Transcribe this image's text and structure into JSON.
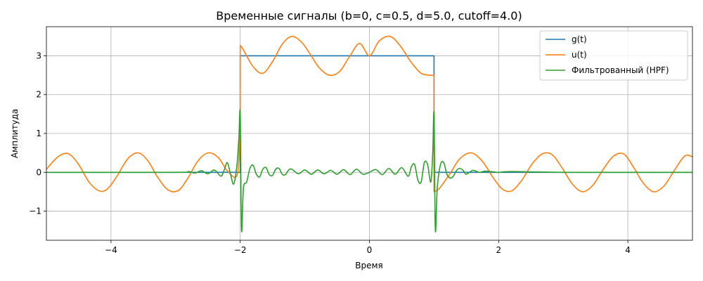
{
  "chart_data": {
    "type": "line",
    "title": "Временные сигналы (b=0, c=0.5, d=5.0, cutoff=4.0)",
    "xlabel": "Время",
    "ylabel": "Амплитуда",
    "xlim": [
      -5,
      5
    ],
    "ylim": [
      -1.75,
      3.75
    ],
    "xticks": [
      -4,
      -2,
      0,
      2,
      4
    ],
    "xtick_labels": [
      "−4",
      "−2",
      "0",
      "2",
      "4"
    ],
    "yticks": [
      -1,
      0,
      1,
      2,
      3
    ],
    "ytick_labels": [
      "−1",
      "0",
      "1",
      "2",
      "3"
    ],
    "grid": true,
    "legend_position": "top-right",
    "series": [
      {
        "name": "g(t)",
        "color": "#1f77b4",
        "x": [
          -5,
          -2,
          -2,
          1,
          1,
          5
        ],
        "y": [
          0,
          0,
          3,
          3,
          0,
          0
        ]
      },
      {
        "name": "u(t)",
        "color": "#ff7f0e",
        "x": [
          -5,
          -4.82,
          -4.66,
          -4.5,
          -4.34,
          -4.18,
          -4.05,
          -3.9,
          -3.74,
          -3.58,
          -3.43,
          -3.28,
          -3.12,
          -2.96,
          -2.81,
          -2.66,
          -2.5,
          -2.34,
          -2.19,
          -2.04,
          -2.0,
          -2.0,
          -1.95,
          -1.8,
          -1.65,
          -1.5,
          -1.35,
          -1.2,
          -1.05,
          -0.92,
          -0.78,
          -0.62,
          -0.46,
          -0.3,
          -0.15,
          0.0,
          0.15,
          0.32,
          0.48,
          0.64,
          0.8,
          0.95,
          1.0,
          1.0,
          1.08,
          1.24,
          1.4,
          1.58,
          1.75,
          1.9,
          2.05,
          2.2,
          2.36,
          2.52,
          2.68,
          2.83,
          2.98,
          3.14,
          3.3,
          3.46,
          3.62,
          3.78,
          3.94,
          4.08,
          4.24,
          4.4,
          4.56,
          4.72,
          4.88,
          5.0
        ],
        "y": [
          0.08,
          0.4,
          0.48,
          0.2,
          -0.25,
          -0.48,
          -0.42,
          -0.08,
          0.35,
          0.5,
          0.3,
          -0.12,
          -0.45,
          -0.47,
          -0.15,
          0.28,
          0.5,
          0.38,
          0.02,
          -0.02,
          1.5,
          3.27,
          3.15,
          2.72,
          2.55,
          2.85,
          3.3,
          3.5,
          3.35,
          3.05,
          2.7,
          2.5,
          2.6,
          3.0,
          3.32,
          3.0,
          3.38,
          3.5,
          3.25,
          2.85,
          2.55,
          2.5,
          2.5,
          -0.5,
          -0.42,
          -0.05,
          0.35,
          0.5,
          0.28,
          -0.1,
          -0.42,
          -0.48,
          -0.2,
          0.22,
          0.48,
          0.45,
          0.12,
          -0.3,
          -0.5,
          -0.33,
          0.08,
          0.42,
          0.47,
          0.15,
          -0.28,
          -0.5,
          -0.35,
          0.05,
          0.42,
          0.4
        ]
      },
      {
        "name": "Фильтрованный (HPF)",
        "color": "#2ca02c",
        "x": [
          -5,
          -3.0,
          -2.8,
          -2.7,
          -2.6,
          -2.5,
          -2.4,
          -2.3,
          -2.25,
          -2.2,
          -2.15,
          -2.1,
          -2.05,
          -2.02,
          -2.0,
          -1.98,
          -1.95,
          -1.9,
          -1.85,
          -1.8,
          -1.75,
          -1.7,
          -1.65,
          -1.6,
          -1.55,
          -1.5,
          -1.45,
          -1.4,
          -1.35,
          -1.3,
          -1.25,
          -1.2,
          -1.1,
          -1.0,
          -0.9,
          -0.8,
          -0.7,
          -0.6,
          -0.5,
          -0.4,
          -0.3,
          -0.2,
          -0.1,
          0.0,
          0.1,
          0.2,
          0.3,
          0.4,
          0.5,
          0.6,
          0.65,
          0.7,
          0.75,
          0.8,
          0.85,
          0.9,
          0.95,
          0.98,
          1.0,
          1.02,
          1.05,
          1.1,
          1.15,
          1.2,
          1.25,
          1.3,
          1.35,
          1.4,
          1.45,
          1.5,
          1.6,
          1.7,
          1.8,
          2.0,
          2.2,
          3.0,
          5.0
        ],
        "y": [
          0.0,
          0.0,
          0.02,
          -0.02,
          0.04,
          -0.04,
          0.06,
          -0.1,
          0.05,
          0.25,
          -0.05,
          -0.3,
          0.2,
          0.9,
          1.5,
          -1.48,
          -0.4,
          -0.25,
          0.1,
          0.18,
          -0.05,
          -0.12,
          0.08,
          0.12,
          -0.06,
          -0.08,
          0.08,
          0.1,
          -0.05,
          -0.06,
          0.06,
          0.08,
          -0.04,
          0.06,
          -0.05,
          0.06,
          -0.04,
          0.05,
          -0.05,
          0.07,
          -0.06,
          0.08,
          -0.05,
          0.0,
          0.07,
          -0.06,
          0.1,
          -0.05,
          0.12,
          -0.1,
          0.15,
          0.2,
          -0.2,
          -0.25,
          0.25,
          0.2,
          -0.25,
          0.5,
          1.5,
          -1.48,
          -0.4,
          0.2,
          0.25,
          -0.05,
          -0.15,
          -0.1,
          0.05,
          0.1,
          0.05,
          -0.05,
          0.05,
          0.0,
          0.03,
          0.0,
          0.02,
          0.0,
          0.0
        ]
      }
    ]
  }
}
